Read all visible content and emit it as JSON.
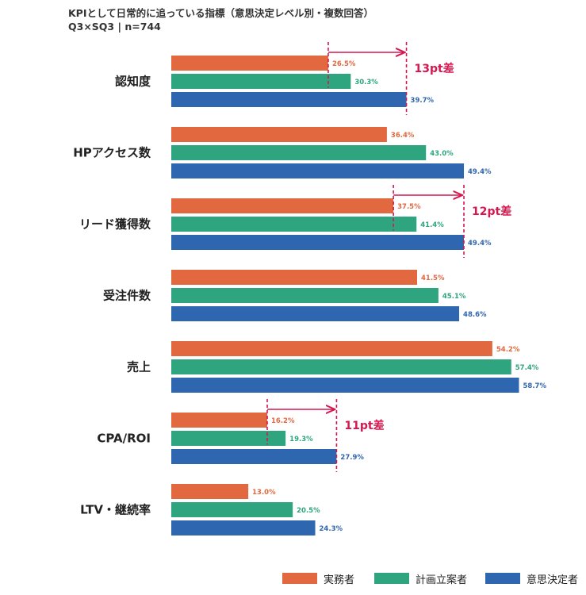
{
  "title": "KPIとして日常的に追っている指標（意思決定レベル別・複数回答）",
  "subtitle": "Q3×SQ3 | n=744",
  "colors": {
    "practitioner": "#E26840",
    "planner": "#2EA57E",
    "decision_maker": "#2F66B0",
    "annotation": "#D6174F"
  },
  "chart_data": {
    "type": "bar",
    "orientation": "horizontal",
    "categories": [
      "認知度",
      "HPアクセス数",
      "リード獲得数",
      "受注件数",
      "売上",
      "CPA/ROI",
      "LTV・継続率"
    ],
    "series": [
      {
        "name": "実務者",
        "values": [
          26.5,
          36.4,
          37.5,
          41.5,
          54.2,
          16.2,
          13.0
        ]
      },
      {
        "name": "計画立案者",
        "values": [
          30.3,
          43.0,
          41.4,
          45.1,
          57.4,
          19.3,
          20.5
        ]
      },
      {
        "name": "意思決定者",
        "values": [
          39.7,
          49.4,
          49.4,
          48.6,
          58.7,
          27.9,
          24.3
        ]
      }
    ],
    "value_labels": [
      [
        "26.5%",
        "36.4%",
        "37.5%",
        "41.5%",
        "54.2%",
        "16.2%",
        "13.0%"
      ],
      [
        "30.3%",
        "43.0%",
        "41.4%",
        "45.1%",
        "57.4%",
        "19.3%",
        "20.5%"
      ],
      [
        "39.7%",
        "49.4%",
        "49.4%",
        "48.6%",
        "58.7%",
        "27.9%",
        "24.3%"
      ]
    ],
    "annotations": [
      {
        "category_index": 0,
        "from": 26.5,
        "to": 39.7,
        "label": "13pt差"
      },
      {
        "category_index": 2,
        "from": 37.5,
        "to": 49.4,
        "label": "12pt差"
      },
      {
        "category_index": 5,
        "from": 16.2,
        "to": 27.9,
        "label": "11pt差"
      }
    ],
    "xlim": [
      0,
      60
    ],
    "grid": false,
    "legend_position": "bottom-right"
  }
}
